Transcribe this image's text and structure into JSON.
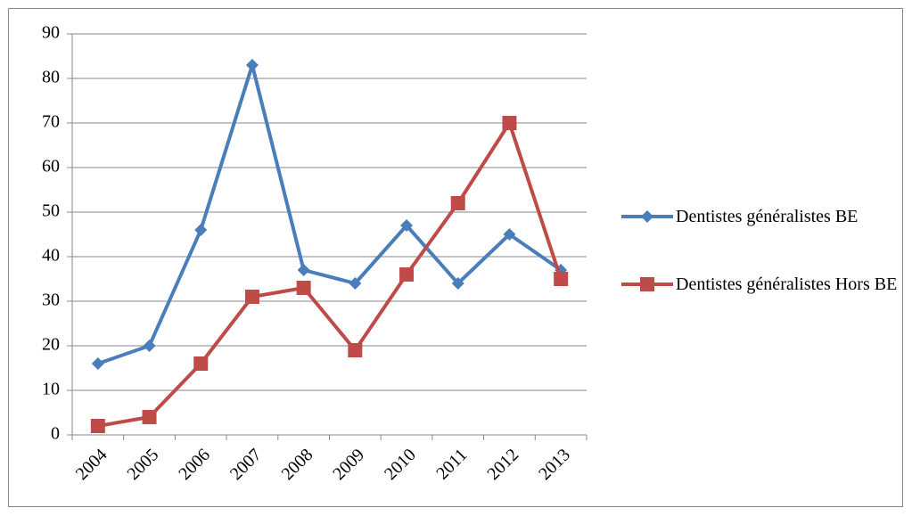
{
  "chart_data": {
    "type": "line",
    "categories": [
      "2004",
      "2005",
      "2006",
      "2007",
      "2008",
      "2009",
      "2010",
      "2011",
      "2012",
      "2013"
    ],
    "series": [
      {
        "name": "Dentistes généralistes BE",
        "color": "#4a7ebb",
        "marker": "diamond",
        "values": [
          16,
          20,
          46,
          83,
          37,
          34,
          47,
          34,
          45,
          37
        ]
      },
      {
        "name": "Dentistes généralistes Hors BE",
        "color": "#be4b48",
        "marker": "square",
        "values": [
          2,
          4,
          16,
          31,
          33,
          19,
          36,
          52,
          70,
          35
        ]
      }
    ],
    "ylim": [
      0,
      90
    ],
    "yticks": [
      0,
      10,
      20,
      30,
      40,
      50,
      60,
      70,
      80,
      90
    ],
    "grid": true,
    "legend": "right"
  }
}
